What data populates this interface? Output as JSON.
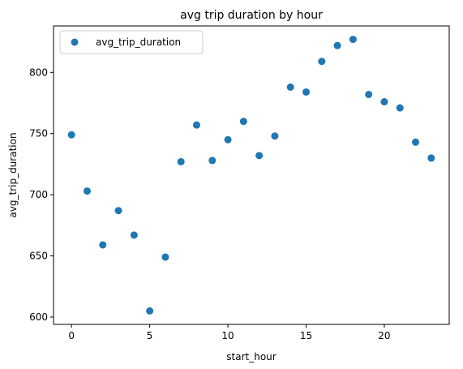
{
  "chart_data": {
    "type": "scatter",
    "title": "avg trip duration by hour",
    "xlabel": "start_hour",
    "ylabel": "avg_trip_duration",
    "xlim": [
      -1.15,
      24.15
    ],
    "ylim": [
      594,
      838
    ],
    "xticks": [
      0,
      5,
      10,
      15,
      20
    ],
    "yticks": [
      600,
      650,
      700,
      750,
      800
    ],
    "grid": false,
    "legend_position": "top-left",
    "series": [
      {
        "name": "avg_trip_duration",
        "color": "#1f77b4",
        "marker": "circle",
        "x": [
          0,
          1,
          2,
          3,
          4,
          5,
          6,
          7,
          8,
          9,
          10,
          11,
          12,
          13,
          14,
          15,
          16,
          17,
          18,
          19,
          20,
          21,
          22,
          23
        ],
        "y": [
          749,
          703,
          659,
          687,
          667,
          605,
          649,
          727,
          757,
          728,
          745,
          760,
          732,
          748,
          788,
          784,
          809,
          822,
          827,
          782,
          776,
          771,
          743,
          730
        ]
      }
    ]
  }
}
